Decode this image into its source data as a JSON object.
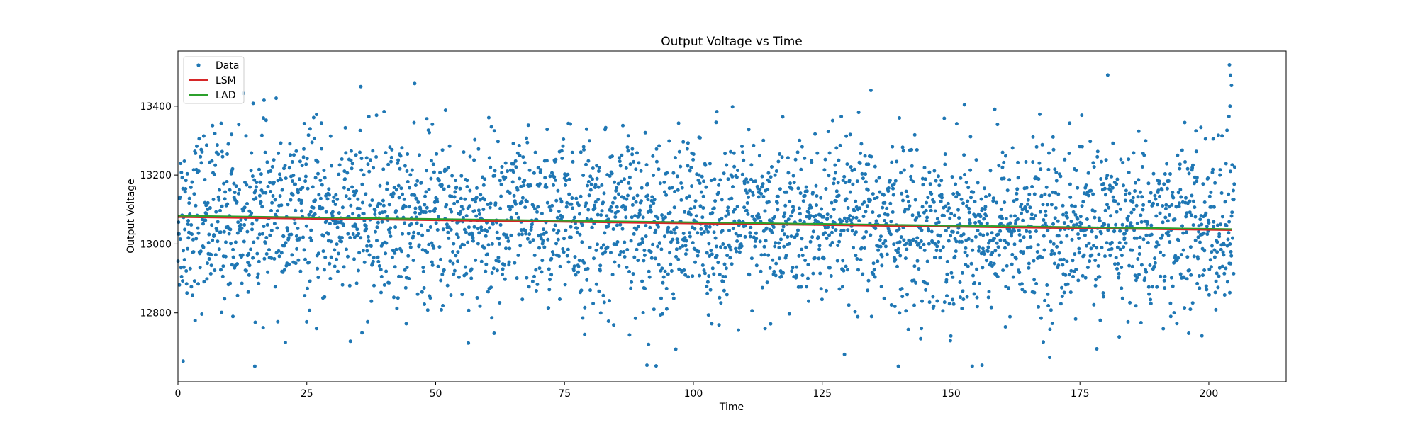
{
  "chart_data": {
    "type": "scatter",
    "title": "Output Voltage vs Time",
    "xlabel": "Time",
    "ylabel": "Output Voltage",
    "xlim": [
      0,
      215
    ],
    "ylim": [
      12600,
      13560
    ],
    "xticks": [
      0,
      25,
      50,
      75,
      100,
      125,
      150,
      175,
      200
    ],
    "yticks": [
      12800,
      13000,
      13200,
      13400
    ],
    "grid": false,
    "legend_position": "top-left",
    "scatter": {
      "name": "Data",
      "color": "#1f77b4",
      "x_range": [
        0,
        205
      ],
      "point_count": 3200,
      "center_start": 13080,
      "center_end": 13040,
      "spread_sd": 125,
      "min": 12645,
      "max": 13520
    },
    "series": [
      {
        "name": "LSM",
        "color": "#d62728",
        "type": "line",
        "x": [
          0,
          204.5
        ],
        "y": [
          13078,
          13040
        ]
      },
      {
        "name": "LAD",
        "color": "#2ca02c",
        "type": "line",
        "x": [
          0,
          204.5
        ],
        "y": [
          13082,
          13043
        ]
      }
    ],
    "legend": [
      "Data",
      "LSM",
      "LAD"
    ]
  }
}
